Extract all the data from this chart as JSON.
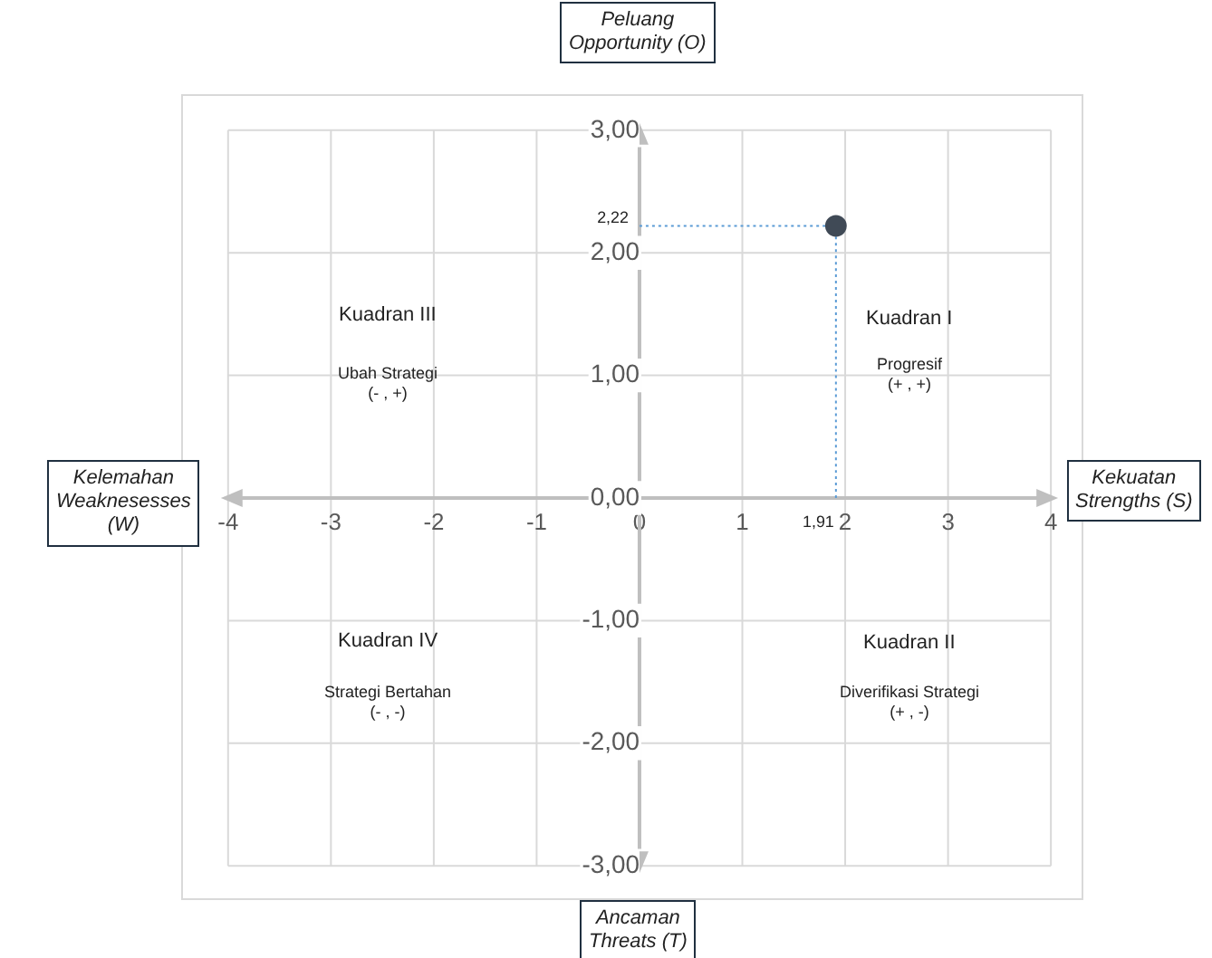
{
  "chart_data": {
    "type": "scatter",
    "x": [
      1.91
    ],
    "values": [
      2.22
    ],
    "color": "#404a56",
    "marker": "circle",
    "xlim": [
      -4,
      4
    ],
    "xticks": [
      -4,
      -3,
      -2,
      -1,
      0,
      1,
      2,
      3,
      4
    ],
    "ylim": [
      -3,
      3
    ],
    "yticks": [
      {
        "value": -3,
        "label": "-3,00"
      },
      {
        "value": -2,
        "label": "-2,00"
      },
      {
        "value": -1,
        "label": "-1,00"
      },
      {
        "value": 0,
        "label": "0,00"
      },
      {
        "value": 1,
        "label": "1,00"
      },
      {
        "value": 2,
        "label": "2,00"
      },
      {
        "value": 3,
        "label": "3,00"
      }
    ],
    "grid": true,
    "legend": false,
    "ref_lines": [
      {
        "axis": "x",
        "value": 1.91,
        "color": "#5b9bd5",
        "line_style": "dotted"
      },
      {
        "axis": "y",
        "value": 2.22,
        "color": "#5b9bd5",
        "line_style": "dotted"
      }
    ],
    "annotations": [
      {
        "text": "2,22",
        "x": 0,
        "y": 2.22
      },
      {
        "text": "1,91",
        "x": 1.91,
        "y": 0
      },
      "Peluang\nOpportunity (O)",
      "Ancaman\nThreats (T)",
      "Kelemahan\nWeaknesesses\n(W)",
      "Kekuatan\nStrengths (S)",
      "Kuadran III",
      "Ubah Strategi\n(- , +)",
      "Kuadran I",
      "Progresif\n(+ , +)",
      "Kuadran IV",
      "Strategi Bertahan\n(- , -)",
      "Kuadran II",
      "Diverifikasi Strategi\n(+ , -)"
    ]
  }
}
